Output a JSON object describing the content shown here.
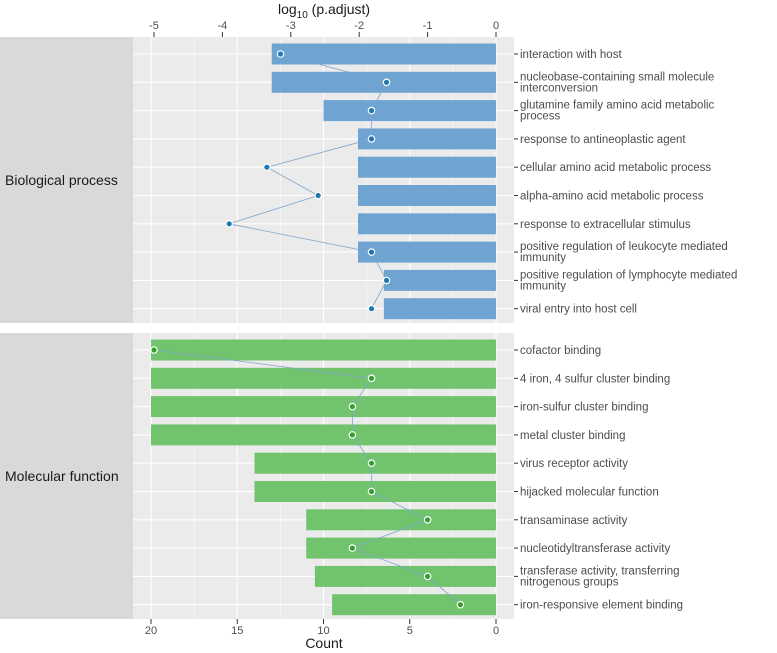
{
  "chart_data": {
    "type": "bar",
    "orientation": "horizontal",
    "xlabel": "Count",
    "x_reversed": true,
    "xlim": [
      0,
      21
    ],
    "x_ticks": [
      20,
      15,
      10,
      5,
      0
    ],
    "top_axis": {
      "label_base": "log",
      "label_sub": "10",
      "label_rest": " (p.adjust)",
      "ticks": [
        -5,
        -4,
        -3,
        -2,
        -1,
        0
      ],
      "tick_labels": [
        "-5",
        "-4",
        "-3",
        "-2",
        "-1",
        "0"
      ],
      "range": [
        -5.3,
        0
      ]
    },
    "colors": {
      "Biological process": "#6fa3d2",
      "Molecular function": "#72c36e",
      "panel_bg": "#ebebeb",
      "strip_bg": "#d9d9d9",
      "grid": "#ffffff",
      "bp_point": "#1f78b4",
      "mf_point": "#33a02c",
      "line": "#7fa6c9"
    },
    "groups": [
      {
        "name": "Biological process",
        "terms": [
          {
            "label": "interaction with host",
            "count": 13,
            "log10_padj": -3.15
          },
          {
            "label": "nucleobase-containing small molecule interconversion",
            "count": 13,
            "log10_padj": -1.6
          },
          {
            "label": "glutamine family amino acid metabolic process",
            "count": 10,
            "log10_padj": -1.82
          },
          {
            "label": "response to antineoplastic agent",
            "count": 8,
            "log10_padj": -1.82
          },
          {
            "label": "cellular amino acid metabolic process",
            "count": 8,
            "log10_padj": -3.35
          },
          {
            "label": "alpha-amino acid metabolic process",
            "count": 8,
            "log10_padj": -2.6
          },
          {
            "label": "response to extracellular stimulus",
            "count": 8,
            "log10_padj": -3.9
          },
          {
            "label": "positive regulation of leukocyte mediated immunity",
            "count": 8,
            "log10_padj": -1.82
          },
          {
            "label": "positive regulation of lymphocyte mediated immunity",
            "count": 6.5,
            "log10_padj": -1.6
          },
          {
            "label": "viral entry into host cell",
            "count": 6.5,
            "log10_padj": -1.82
          }
        ]
      },
      {
        "name": "Molecular function",
        "terms": [
          {
            "label": "cofactor binding",
            "count": 20,
            "log10_padj": -5.0
          },
          {
            "label": "4 iron, 4 sulfur cluster binding",
            "count": 20,
            "log10_padj": -1.82
          },
          {
            "label": "iron-sulfur cluster binding",
            "count": 20,
            "log10_padj": -2.1
          },
          {
            "label": "metal cluster binding",
            "count": 20,
            "log10_padj": -2.1
          },
          {
            "label": "virus receptor activity",
            "count": 14,
            "log10_padj": -1.82
          },
          {
            "label": "hijacked molecular function",
            "count": 14,
            "log10_padj": -1.82
          },
          {
            "label": "transaminase activity",
            "count": 11,
            "log10_padj": -1.0
          },
          {
            "label": "nucleotidyltransferase activity",
            "count": 11,
            "log10_padj": -2.1
          },
          {
            "label": "transferase activity, transferring nitrogenous groups",
            "count": 10.5,
            "log10_padj": -1.0
          },
          {
            "label": "iron-responsive element binding",
            "count": 9.5,
            "log10_padj": -0.52
          }
        ]
      }
    ]
  }
}
